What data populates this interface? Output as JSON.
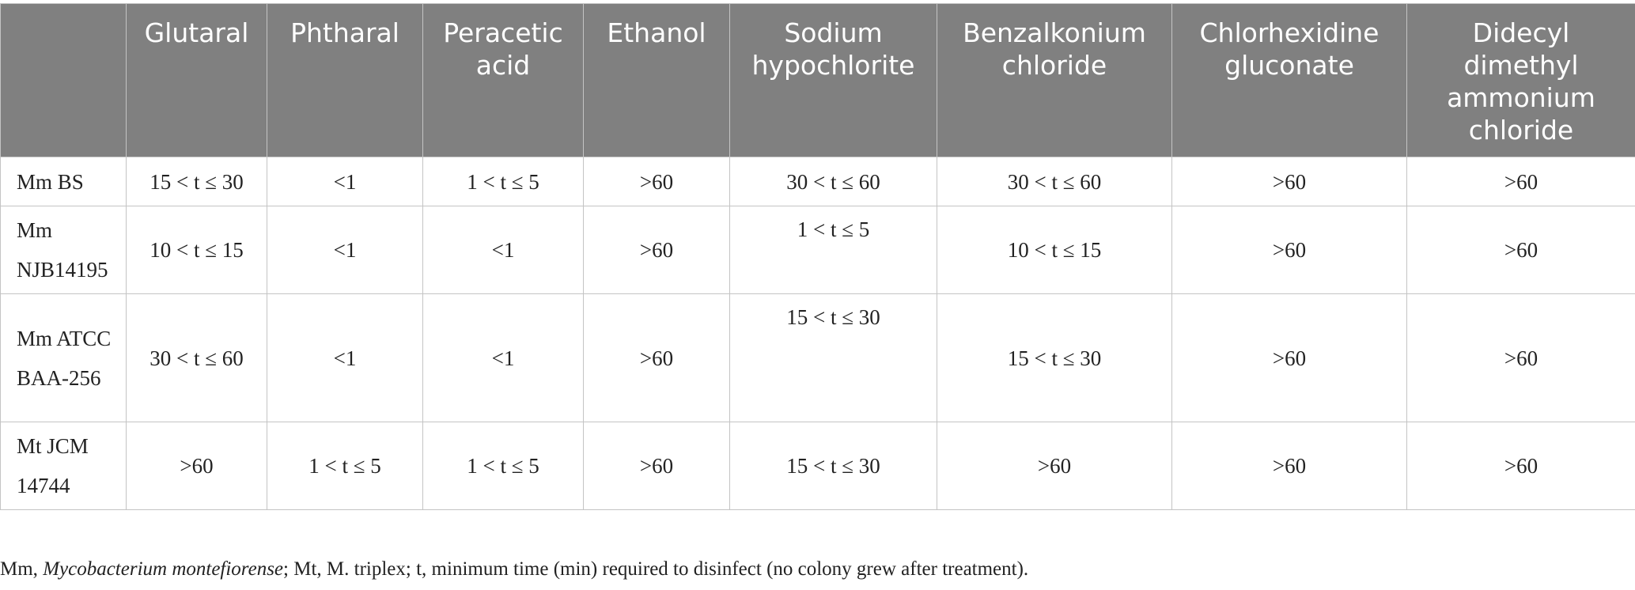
{
  "table": {
    "headers": [
      "",
      "Glutaral",
      "Phtharal",
      "Peracetic acid",
      "Ethanol",
      "Sodium hypochlorite",
      "Benzalkonium chloride",
      "Chlorhexidine gluconate",
      "Didecyl dimethyl ammonium chloride"
    ],
    "rows": [
      {
        "label": "Mm BS",
        "cells": [
          "15 < t ≤ 30",
          "<1",
          "1 < t ≤ 5",
          ">60",
          "30 < t ≤ 60",
          "30 < t ≤ 60",
          ">60",
          ">60"
        ]
      },
      {
        "label": "Mm NJB14195",
        "cells": [
          "10 < t ≤ 15",
          "<1",
          "<1",
          ">60",
          "1 < t ≤ 5",
          "10 < t ≤ 15",
          ">60",
          ">60"
        ]
      },
      {
        "label": "Mm ATCC BAA-256",
        "cells": [
          "30 < t ≤ 60",
          "<1",
          "<1",
          ">60",
          "15 < t ≤ 30",
          "15 < t ≤ 30",
          ">60",
          ">60"
        ]
      },
      {
        "label": "Mt JCM 14744",
        "cells": [
          ">60",
          "1 < t ≤ 5",
          "1 < t ≤ 5",
          ">60",
          "15 < t ≤ 30",
          ">60",
          ">60",
          ">60"
        ]
      }
    ]
  },
  "footnote": {
    "prefix": "Mm, ",
    "species": "Mycobacterium montefiorense",
    "rest": "; Mt, M. triplex; t, minimum time (min) required to disinfect (no colony grew after treatment)."
  }
}
